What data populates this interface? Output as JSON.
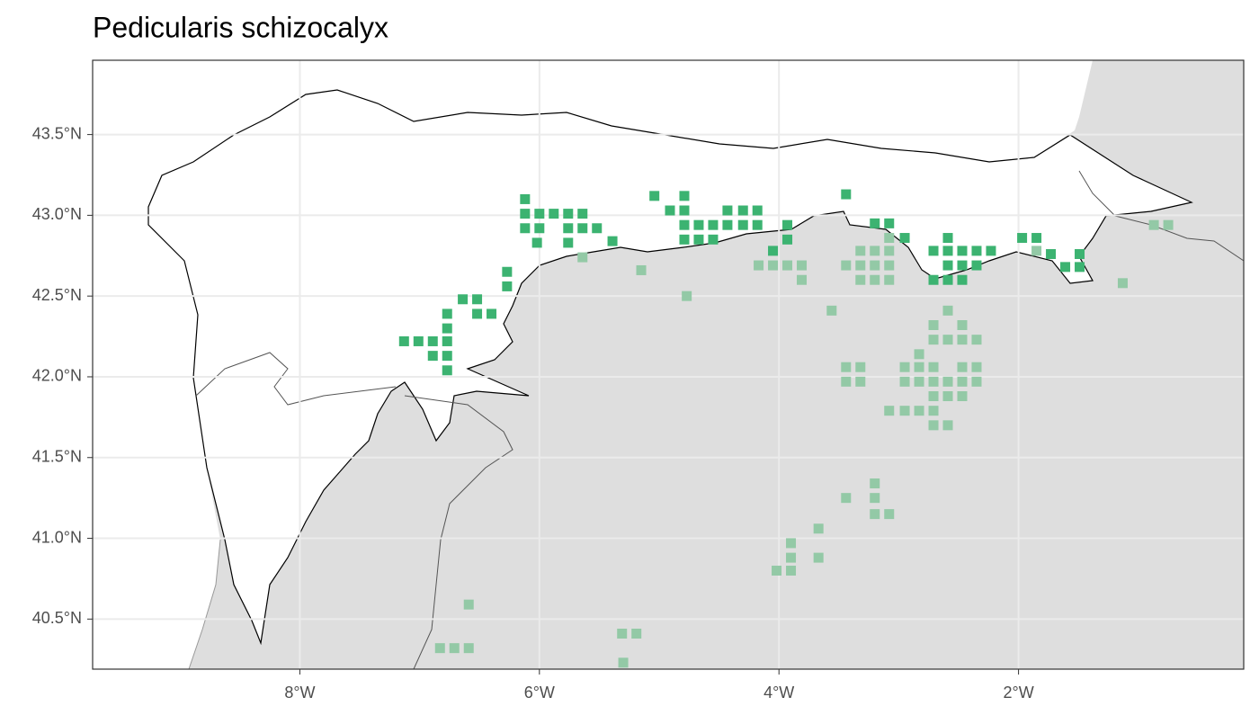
{
  "chart_data": {
    "type": "map",
    "title": "Pedicularis schizocalyx",
    "xlim": [
      -9.73,
      -0.12
    ],
    "ylim": [
      40.19,
      43.96
    ],
    "xticks": [
      {
        "value": -8,
        "label": "8°W"
      },
      {
        "value": -6,
        "label": "6°W"
      },
      {
        "value": -4,
        "label": "4°W"
      },
      {
        "value": -2,
        "label": "2°W"
      }
    ],
    "yticks": [
      {
        "value": 40.5,
        "label": "40.5°N"
      },
      {
        "value": 41.0,
        "label": "41.0°N"
      },
      {
        "value": 41.5,
        "label": "41.5°N"
      },
      {
        "value": 42.0,
        "label": "42.0°N"
      },
      {
        "value": 42.5,
        "label": "42.5°N"
      },
      {
        "value": 43.0,
        "label": "43.0°N"
      },
      {
        "value": 43.5,
        "label": "43.5°N"
      }
    ],
    "grid": true,
    "series": [
      {
        "color": "#93c9a6",
        "x": [
          -0.87,
          -0.75,
          -1.13,
          -1.85,
          -3.08,
          -3.32,
          -3.2,
          -3.08,
          -3.44,
          -3.32,
          -3.2,
          -3.08,
          -3.32,
          -3.2,
          -3.08,
          -4.17,
          -4.05,
          -3.93,
          -3.81,
          -3.81,
          -5.15,
          -5.64,
          -4.77,
          -3.56,
          -2.59,
          -2.71,
          -2.47,
          -2.71,
          -2.59,
          -2.47,
          -2.35,
          -2.83,
          -2.95,
          -2.83,
          -2.71,
          -2.47,
          -2.35,
          -3.44,
          -3.32,
          -3.44,
          -3.32,
          -2.95,
          -2.83,
          -2.71,
          -2.59,
          -2.47,
          -2.35,
          -2.71,
          -2.59,
          -2.47,
          -3.08,
          -2.95,
          -2.83,
          -2.71,
          -2.71,
          -2.59,
          -3.2,
          -3.44,
          -3.2,
          -3.2,
          -3.08,
          -3.67,
          -3.9,
          -3.9,
          -3.67,
          -4.02,
          -3.9,
          -6.59,
          -6.83,
          -6.71,
          -6.59,
          -5.31,
          -5.19,
          -5.3
        ],
        "y": [
          42.94,
          42.94,
          42.58,
          42.78,
          42.86,
          42.78,
          42.78,
          42.78,
          42.69,
          42.69,
          42.69,
          42.69,
          42.6,
          42.6,
          42.6,
          42.69,
          42.69,
          42.69,
          42.69,
          42.6,
          42.66,
          42.74,
          42.5,
          42.41,
          42.41,
          42.32,
          42.32,
          42.23,
          42.23,
          42.23,
          42.23,
          42.14,
          42.06,
          42.06,
          42.06,
          42.06,
          42.06,
          42.06,
          42.06,
          41.97,
          41.97,
          41.97,
          41.97,
          41.97,
          41.97,
          41.97,
          41.97,
          41.88,
          41.88,
          41.88,
          41.79,
          41.79,
          41.79,
          41.79,
          41.7,
          41.7,
          41.34,
          41.25,
          41.25,
          41.15,
          41.15,
          41.06,
          40.97,
          40.88,
          40.88,
          40.8,
          40.8,
          40.59,
          40.32,
          40.32,
          40.32,
          40.41,
          40.41,
          40.23
        ]
      },
      {
        "color": "#3cb371",
        "x": [
          -6.12,
          -6.12,
          -6.0,
          -5.88,
          -5.76,
          -5.64,
          -6.12,
          -6.0,
          -5.76,
          -5.64,
          -5.52,
          -6.02,
          -5.76,
          -5.39,
          -5.04,
          -4.79,
          -4.91,
          -4.79,
          -4.43,
          -4.3,
          -4.18,
          -4.79,
          -4.67,
          -4.55,
          -4.43,
          -4.3,
          -4.18,
          -3.93,
          -4.79,
          -4.67,
          -4.55,
          -3.93,
          -3.44,
          -3.2,
          -3.08,
          -2.95,
          -6.27,
          -6.27,
          -6.64,
          -6.52,
          -6.77,
          -6.52,
          -6.4,
          -6.77,
          -7.13,
          -7.01,
          -6.89,
          -6.77,
          -6.89,
          -6.77,
          -6.77,
          -4.05,
          -2.59,
          -2.71,
          -2.59,
          -2.47,
          -2.35,
          -2.23,
          -2.59,
          -2.47,
          -2.35,
          -2.71,
          -2.59,
          -2.47,
          -1.97,
          -1.85,
          -1.73,
          -1.49,
          -1.61,
          -1.49
        ],
        "y": [
          43.1,
          43.01,
          43.01,
          43.01,
          43.01,
          43.01,
          42.92,
          42.92,
          42.92,
          42.92,
          42.92,
          42.83,
          42.83,
          42.84,
          43.12,
          43.12,
          43.03,
          43.03,
          43.03,
          43.03,
          43.03,
          42.94,
          42.94,
          42.94,
          42.94,
          42.94,
          42.94,
          42.94,
          42.85,
          42.85,
          42.85,
          42.85,
          43.13,
          42.95,
          42.95,
          42.86,
          42.65,
          42.56,
          42.48,
          42.48,
          42.39,
          42.39,
          42.39,
          42.3,
          42.22,
          42.22,
          42.22,
          42.22,
          42.13,
          42.13,
          42.04,
          42.78,
          42.86,
          42.78,
          42.78,
          42.78,
          42.78,
          42.78,
          42.69,
          42.69,
          42.69,
          42.6,
          42.6,
          42.6,
          42.86,
          42.86,
          42.76,
          42.76,
          42.68,
          42.68
        ]
      }
    ]
  }
}
